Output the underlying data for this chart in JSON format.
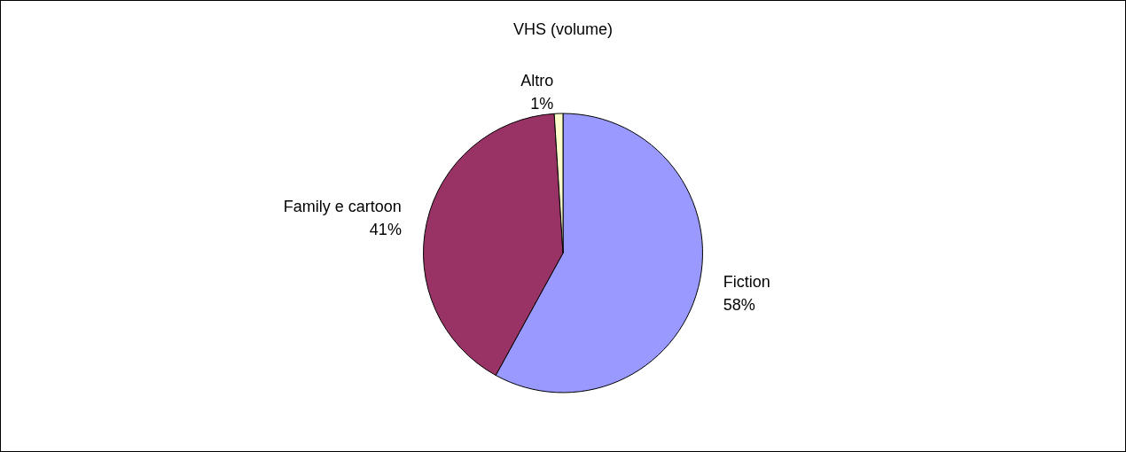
{
  "chart_data": {
    "type": "pie",
    "title": "VHS (volume)",
    "categories": [
      "Fiction",
      "Family e cartoon",
      "Altro"
    ],
    "values": [
      58,
      41,
      1
    ],
    "value_labels": [
      "58%",
      "41%",
      "1%"
    ],
    "colors": [
      "#9999ff",
      "#993366",
      "#ffffcc"
    ],
    "legend": false
  }
}
